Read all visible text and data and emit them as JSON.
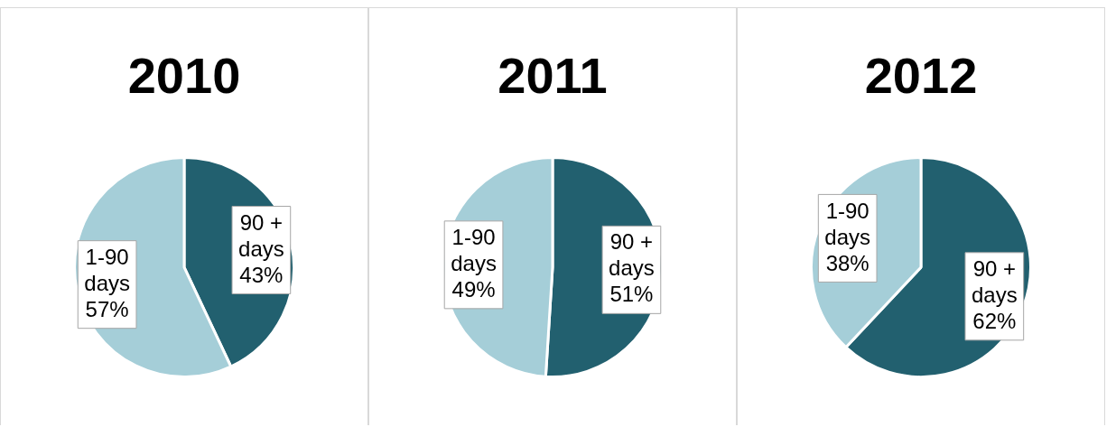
{
  "chart_data": [
    {
      "type": "pie",
      "title": "2010",
      "categories": [
        "90 + days",
        "1-90 days"
      ],
      "values": [
        43,
        57
      ],
      "colors": [
        "#22606f",
        "#a5ced8"
      ],
      "value_labels": [
        "43%",
        "57%"
      ]
    },
    {
      "type": "pie",
      "title": "2011",
      "categories": [
        "90 + days",
        "1-90 days"
      ],
      "values": [
        51,
        49
      ],
      "colors": [
        "#22606f",
        "#a5ced8"
      ],
      "value_labels": [
        "51%",
        "49%"
      ]
    },
    {
      "type": "pie",
      "title": "2012",
      "categories": [
        "90 + days",
        "1-90 days"
      ],
      "values": [
        62,
        38
      ],
      "colors": [
        "#22606f",
        "#a5ced8"
      ],
      "value_labels": [
        "62%",
        "38%"
      ]
    }
  ]
}
